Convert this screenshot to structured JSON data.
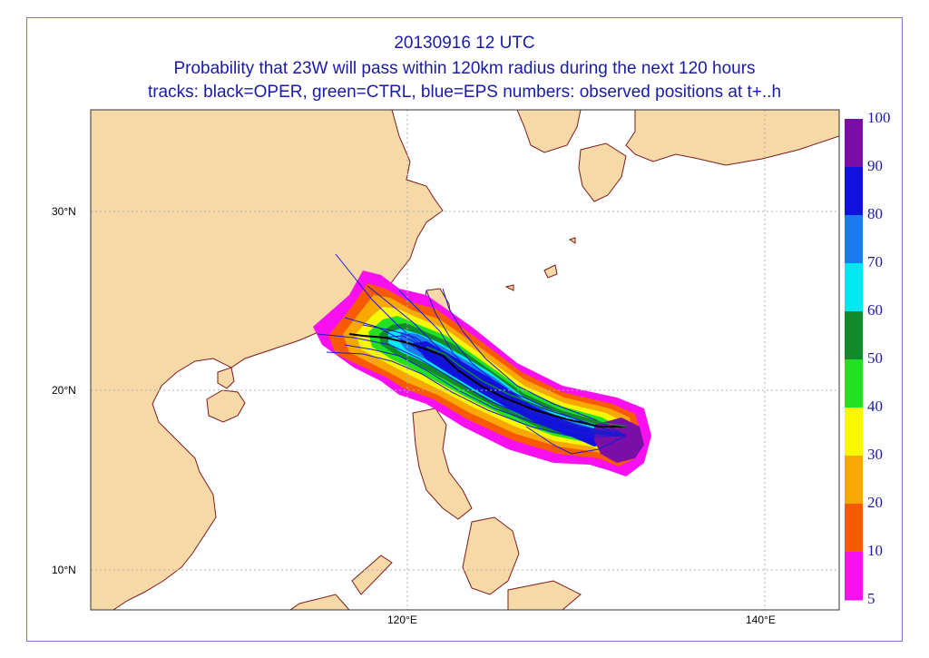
{
  "title": {
    "line1": "20130916 12 UTC",
    "line2": "Probability that 23W will pass within 120km radius during the next 120 hours",
    "line3": "tracks: black=OPER, green=CTRL, blue=EPS numbers: observed positions at t+..h"
  },
  "axes": {
    "lat_labels": [
      "30°N",
      "20°N",
      "10°N"
    ],
    "lon_labels": [
      "120°E",
      "140°E"
    ]
  },
  "legend": {
    "levels": [
      {
        "label": "100",
        "color": "#7a0fa8"
      },
      {
        "label": "90",
        "color": "#1010e0"
      },
      {
        "label": "80",
        "color": "#1a7af0"
      },
      {
        "label": "70",
        "color": "#00e8f0"
      },
      {
        "label": "60",
        "color": "#118a2a"
      },
      {
        "label": "50",
        "color": "#22e022"
      },
      {
        "label": "40",
        "color": "#f8f800"
      },
      {
        "label": "30",
        "color": "#f8a800"
      },
      {
        "label": "20",
        "color": "#f85a00"
      },
      {
        "label": "10",
        "color": "#f810f0"
      },
      {
        "label": "5",
        "color": ""
      }
    ]
  },
  "colors": {
    "land": "#f7d9a8",
    "sea": "#ffffff",
    "coast": "#7a1a1a",
    "grid": "#b0b0b0",
    "text": "#1a1aa8"
  }
}
